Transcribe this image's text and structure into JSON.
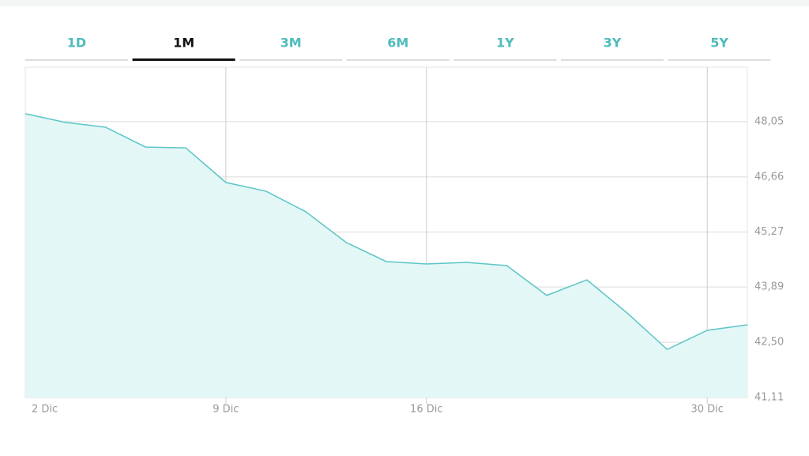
{
  "tabs": [
    "1D",
    "1M",
    "3M",
    "6M",
    "1Y",
    "3Y",
    "5Y"
  ],
  "active_tab": 1,
  "chart_data": {
    "type": "area",
    "categories": [
      "2 Dic",
      null,
      null,
      null,
      null,
      "9 Dic",
      null,
      null,
      null,
      null,
      "16 Dic",
      null,
      null,
      null,
      null,
      null,
      null,
      "30 Dic",
      null
    ],
    "values": [
      48.25,
      48.03,
      47.91,
      47.41,
      47.39,
      46.52,
      46.3,
      45.78,
      45.01,
      44.53,
      44.47,
      44.51,
      44.43,
      43.68,
      44.07,
      43.24,
      42.32,
      42.8,
      42.94
    ],
    "color": "#5cc5c5",
    "fill": "#e3f7f6",
    "ylim": [
      41.11,
      49.42
    ],
    "yticks": [
      {
        "value": 41.11,
        "label": "41,11"
      },
      {
        "value": 42.5,
        "label": "42,50"
      },
      {
        "value": 43.89,
        "label": "43,89"
      },
      {
        "value": 45.27,
        "label": "45,27"
      },
      {
        "value": 46.66,
        "label": "46,66"
      },
      {
        "value": 48.05,
        "label": "48,05"
      }
    ],
    "grid": true
  }
}
